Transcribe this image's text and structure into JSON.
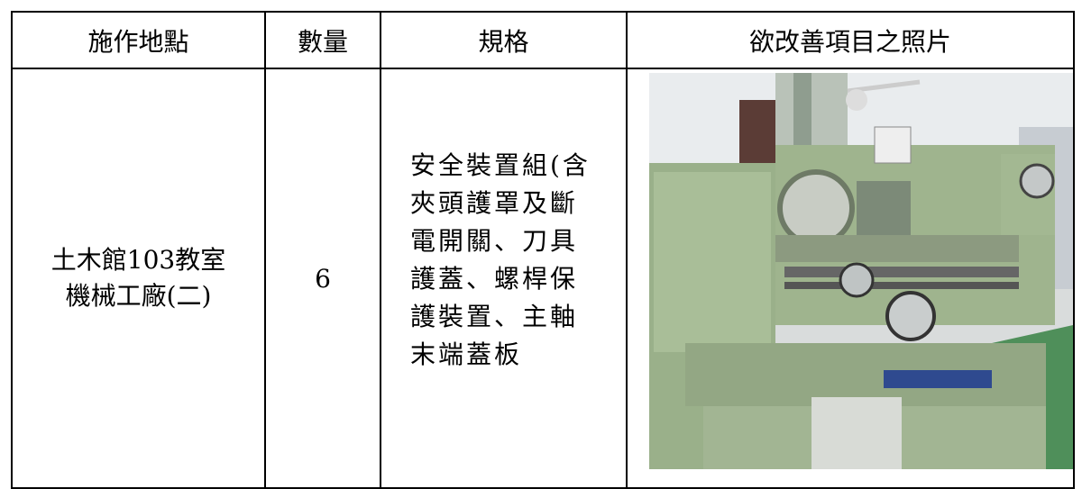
{
  "table": {
    "header": [
      "施作地點",
      "數量",
      "規格",
      "欲改善項目之照片"
    ],
    "rows": [
      [
        "土木館103教室",
        "機械工廠(二)",
        "6",
        "安全裝置組(含夾頭護罩及斷電開關、刀具護蓋、螺桿保護裝置、主軸末端蓋板"
      ]
    ]
  }
}
